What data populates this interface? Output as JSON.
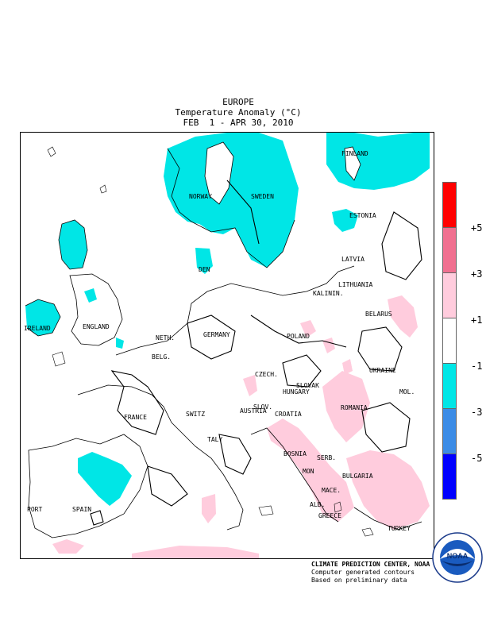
{
  "title": {
    "region": "EUROPE",
    "variable": "Temperature Anomaly (°C)",
    "period": "FEB  1 - APR 30, 2010"
  },
  "legend": {
    "bins": [
      {
        "range": "> +5",
        "color": "#ff0000"
      },
      {
        "range": "+3 to +5",
        "color": "#f07090"
      },
      {
        "range": "+1 to +3",
        "color": "#ffccdd"
      },
      {
        "range": "-1 to +1",
        "color": "#ffffff"
      },
      {
        "range": "-3 to -1",
        "color": "#00e6e6"
      },
      {
        "range": "-5 to -3",
        "color": "#3c8ce6"
      },
      {
        "range": "< -5",
        "color": "#0000ff"
      }
    ],
    "labels": [
      "+5",
      "+3",
      "+1",
      "-1",
      "-3",
      "-5"
    ]
  },
  "countries": {
    "norway": "NORWAY",
    "sweden": "SWEDEN",
    "finland": "FINLAND",
    "estonia": "ESTONIA",
    "latvia": "LATVIA",
    "lithuania": "LITHUANIA",
    "belarus": "BELARUS",
    "ukraine": "UKRAINE",
    "moldova": "MOL.",
    "romania": "ROMANIA",
    "bulgaria": "BULGARIA",
    "turkey": "TURKEY",
    "greece": "GREECE",
    "macedonia": "MACE.",
    "albania": "ALB.",
    "montenegro": "MON",
    "serbia": "SERB.",
    "bosnia": "BOSNIA",
    "croatia": "CROATIA",
    "slovenia": "SLOV.",
    "hungary": "HUNGARY",
    "slovakia": "SLOVAK",
    "czech": "CZECH.",
    "austria": "AUSTRIA",
    "poland": "POLAND",
    "germany": "GERMANY",
    "denmark": "DEN",
    "netherlands": "NETH.",
    "belgium": "BELG.",
    "switzerland": "SWITZ",
    "france": "FRANCE",
    "italy": "TALY",
    "spain": "SPAIN",
    "portugal": "PORT",
    "england": "ENGLAND",
    "ireland": "IRELAND",
    "kaliningrad": "KALININ."
  },
  "credit": {
    "org": "CLIMATE PREDICTION CENTER, NOAA",
    "line2": "Computer generated contours",
    "line3": "Based on preliminary data"
  },
  "logo": {
    "text": "NOAA"
  }
}
